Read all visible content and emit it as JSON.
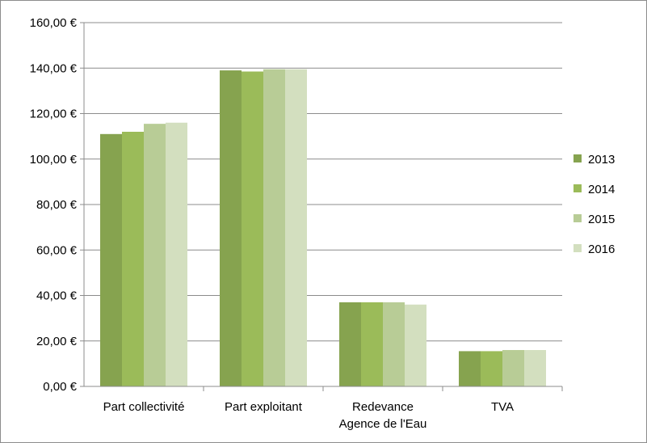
{
  "chart_data": {
    "type": "bar",
    "categories": [
      [
        "Part collectivité"
      ],
      [
        "Part exploitant"
      ],
      [
        "Redevance",
        "Agence de l'Eau"
      ],
      [
        "TVA"
      ]
    ],
    "series": [
      {
        "name": "2013",
        "color": "#86a34f",
        "values": [
          111.0,
          139.0,
          37.0,
          15.5
        ]
      },
      {
        "name": "2014",
        "color": "#9bbb59",
        "values": [
          112.0,
          138.5,
          37.0,
          15.5
        ]
      },
      {
        "name": "2015",
        "color": "#b8cc96",
        "values": [
          115.5,
          139.5,
          37.0,
          16.0
        ]
      },
      {
        "name": "2016",
        "color": "#d3dfbf",
        "values": [
          116.0,
          139.5,
          36.0,
          16.0
        ]
      }
    ],
    "ylim": [
      0,
      160
    ],
    "yticks": [
      0,
      20,
      40,
      60,
      80,
      100,
      120,
      140,
      160
    ],
    "ytick_labels": [
      "0,00 €",
      "20,00 €",
      "40,00 €",
      "60,00 €",
      "80,00 €",
      "100,00 €",
      "120,00 €",
      "140,00 €",
      "160,00 €"
    ],
    "grid": true,
    "legend_position": "right",
    "title": "",
    "xlabel": "",
    "ylabel": ""
  }
}
